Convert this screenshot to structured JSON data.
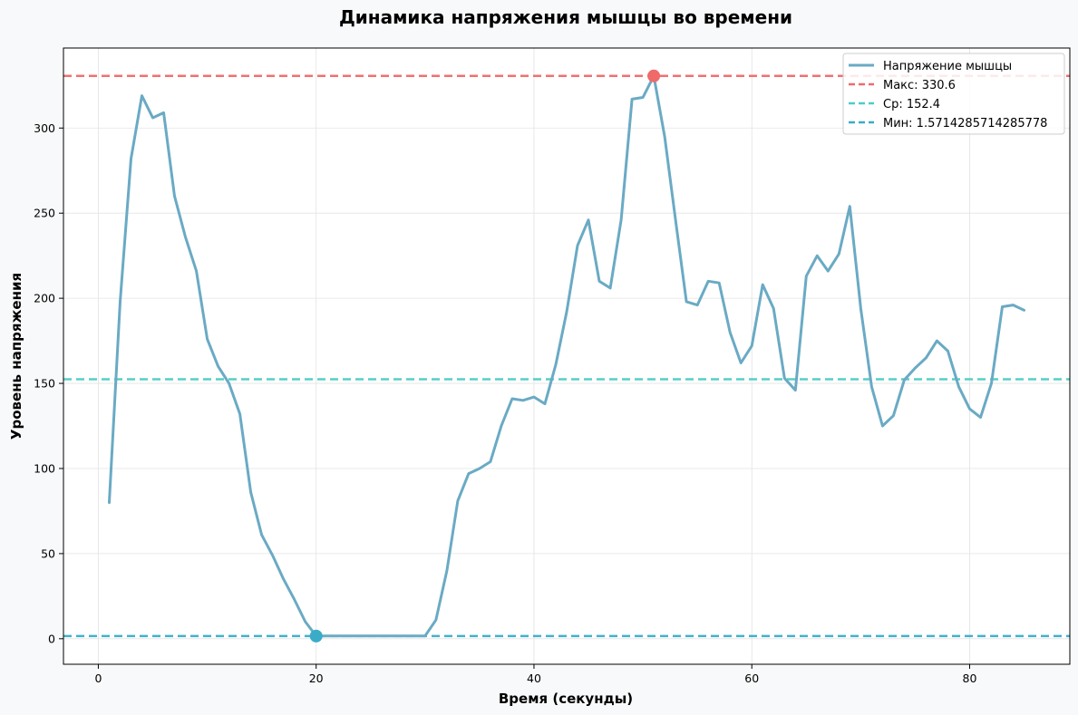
{
  "chart_data": {
    "type": "line",
    "title": "Динамика напряжения мышцы во времени",
    "xlabel": "Время (секунды)",
    "ylabel": "Уровень напряжения",
    "xlim": [
      -3.2,
      89.2
    ],
    "ylim": [
      -15,
      347
    ],
    "x_ticks": [
      0,
      20,
      40,
      60,
      80
    ],
    "y_ticks": [
      0,
      50,
      100,
      150,
      200,
      250,
      300
    ],
    "grid": true,
    "legend_position": "top-right",
    "series": [
      {
        "name": "Напряжение мышцы",
        "color": "#6aaac4",
        "x": [
          1,
          2,
          3,
          4,
          5,
          6,
          7,
          8,
          9,
          10,
          11,
          12,
          13,
          14,
          15,
          16,
          17,
          18,
          19,
          20,
          21,
          22,
          23,
          24,
          25,
          26,
          27,
          28,
          29,
          30,
          31,
          32,
          33,
          34,
          35,
          36,
          37,
          38,
          39,
          40,
          41,
          42,
          43,
          44,
          45,
          46,
          47,
          48,
          49,
          50,
          51,
          52,
          53,
          54,
          55,
          56,
          57,
          58,
          59,
          60,
          61,
          62,
          63,
          64,
          65,
          66,
          67,
          68,
          69,
          70,
          71,
          72,
          73,
          74,
          75,
          76,
          77,
          78,
          79,
          80,
          81,
          82,
          83,
          84,
          85
        ],
        "y": [
          80,
          198,
          282,
          319,
          306,
          309,
          260,
          236,
          216,
          176,
          160,
          150,
          132,
          86,
          61,
          49,
          35,
          23,
          10,
          1.6,
          1.6,
          1.6,
          1.6,
          1.6,
          1.6,
          1.6,
          1.6,
          1.6,
          1.6,
          1.6,
          11,
          40,
          81,
          97,
          100,
          104,
          125,
          141,
          140,
          142,
          138,
          161,
          192,
          231,
          246,
          210,
          206,
          246,
          317,
          318,
          330.6,
          295,
          246,
          198,
          196,
          210,
          209,
          180,
          162,
          172,
          208,
          194,
          153,
          146,
          213,
          225,
          216,
          226,
          254,
          194,
          148,
          125,
          131,
          152,
          159,
          165,
          175,
          169,
          148,
          135,
          130,
          150,
          195,
          196,
          193
        ]
      }
    ],
    "reference_lines": [
      {
        "label": "Макс: 330.6",
        "value": 330.6,
        "color": "#f06a6a"
      },
      {
        "label": "Ср: 152.4",
        "value": 152.4,
        "color": "#4ecdc4"
      },
      {
        "label": "Мин: 1.5714285714285778",
        "value": 1.5714285714285778,
        "color": "#3aacc8"
      }
    ],
    "markers": [
      {
        "point": "max",
        "x": 51,
        "y": 330.6,
        "color": "#f06a6a"
      },
      {
        "point": "min",
        "x": 20,
        "y": 1.5714285714285778,
        "color": "#3aacc8"
      }
    ]
  }
}
